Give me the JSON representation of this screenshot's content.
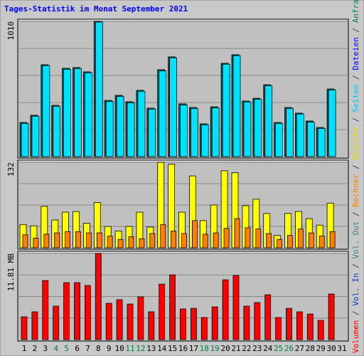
{
  "chart_data": [
    {
      "type": "bar",
      "title": "Tages-Statistik im Monat September 2021",
      "series": [
        {
          "color": "#006868",
          "values": [
            255,
            309,
            686,
            383,
            660,
            665,
            633,
            1010,
            420,
            458,
            410,
            495,
            362,
            649,
            745,
            394,
            367,
            245,
            372,
            697,
            761,
            415,
            436,
            537,
            255,
            367,
            325,
            266,
            218,
            505,
            null
          ]
        },
        {
          "color": "#00e0ff",
          "values": [
            248,
            302,
            680,
            376,
            652,
            658,
            626,
            1005,
            412,
            450,
            402,
            488,
            355,
            640,
            738,
            386,
            360,
            238,
            364,
            690,
            754,
            408,
            428,
            530,
            248,
            360,
            318,
            258,
            210,
            498,
            null
          ]
        }
      ],
      "ylim": [
        0,
        1010
      ],
      "yticks": [
        1010
      ],
      "gridlines": [
        202,
        404,
        606,
        808
      ]
    },
    {
      "type": "bar",
      "series": [
        {
          "color": "#ffff00",
          "values": [
            36,
            34,
            64,
            43,
            55,
            56,
            38,
            70,
            33,
            26,
            33,
            55,
            32,
            132,
            129,
            55,
            111,
            42,
            66,
            119,
            116,
            65,
            75,
            53,
            19,
            53,
            56,
            45,
            35,
            69,
            null
          ]
        },
        {
          "color": "#ff8000",
          "values": [
            20,
            15,
            21,
            23,
            25,
            25,
            23,
            23,
            18,
            13,
            17,
            14,
            22,
            36,
            26,
            22,
            42,
            21,
            23,
            30,
            45,
            31,
            29,
            22,
            13,
            19,
            29,
            23,
            18,
            25,
            null
          ]
        }
      ],
      "ylim": [
        0,
        132
      ],
      "yticks": [
        132
      ],
      "gridlines": [
        33,
        66,
        99
      ]
    },
    {
      "type": "bar",
      "categories": [
        "1",
        "2",
        "3",
        "4",
        "5",
        "6",
        "7",
        "8",
        "9",
        "10",
        "11",
        "12",
        "13",
        "14",
        "15",
        "16",
        "17",
        "18",
        "19",
        "20",
        "21",
        "22",
        "23",
        "24",
        "25",
        "26",
        "27",
        "28",
        "29",
        "30",
        "31"
      ],
      "category_colors": [
        "#000000",
        "#000000",
        "#000000",
        "#008040",
        "#008040",
        "#000000",
        "#000000",
        "#000000",
        "#000000",
        "#000000",
        "#008040",
        "#008040",
        "#000000",
        "#000000",
        "#000000",
        "#000000",
        "#000000",
        "#008040",
        "#008040",
        "#000000",
        "#000000",
        "#000000",
        "#000000",
        "#000000",
        "#008040",
        "#008040",
        "#000000",
        "#000000",
        "#000000",
        "#000000",
        "#000000"
      ],
      "series": [
        {
          "color": "#ff0000",
          "values": [
            3.12,
            3.81,
            8.1,
            4.59,
            7.81,
            7.81,
            7.42,
            11.81,
            4.98,
            5.47,
            4.88,
            5.86,
            3.81,
            7.61,
            8.88,
            4.2,
            4.29,
            3.03,
            4.49,
            8.2,
            8.79,
            4.59,
            5.08,
            6.15,
            3.03,
            4.29,
            3.81,
            3.51,
            2.64,
            6.25,
            null
          ]
        }
      ],
      "ylim": [
        0,
        11.81
      ],
      "yticks": [
        {
          "value": 11.81,
          "label": "11.81 MB"
        }
      ],
      "gridlines": [
        2.95,
        5.9,
        8.86
      ]
    }
  ],
  "legend_separator": " / ",
  "legend": [
    {
      "name": "Volumen",
      "color": "#ff0000"
    },
    {
      "name": "Vol. In",
      "color": "#0040c0"
    },
    {
      "name": "Vol. Out",
      "color": "#408080"
    },
    {
      "name": "Rechner",
      "color": "#ff8000"
    },
    {
      "name": "Besuche",
      "color": "#e0e000"
    },
    {
      "name": "Seiten",
      "color": "#00c0ff"
    },
    {
      "name": "Dateien",
      "color": "#0000ff"
    },
    {
      "name": "Anfragen",
      "color": "#008060"
    }
  ]
}
